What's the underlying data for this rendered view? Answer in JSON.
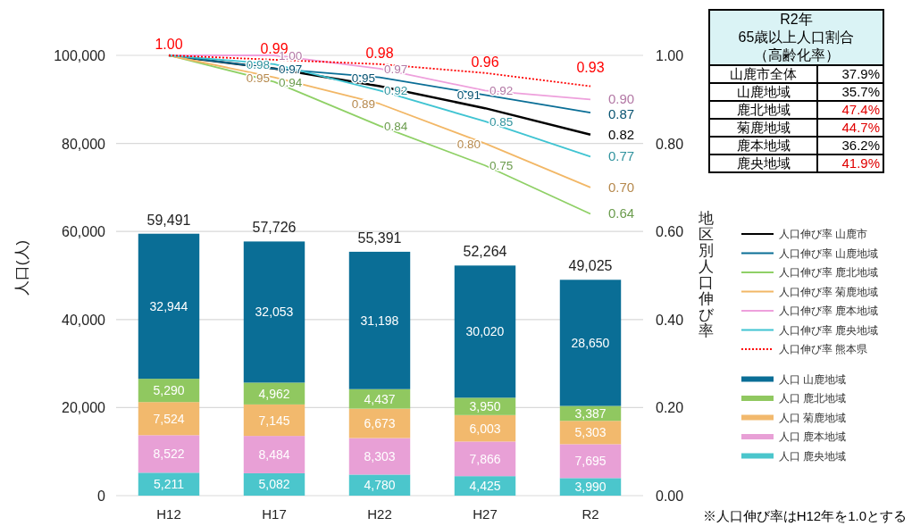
{
  "chart_data": [
    {
      "type": "bar",
      "stacked": true,
      "categories": [
        "H12",
        "H17",
        "H22",
        "H27",
        "R2"
      ],
      "ylabel": "人口(人)",
      "y2label": "地区別人口伸び率",
      "ylim": [
        0,
        100000
      ],
      "yticks": [
        {
          "value": 0,
          "label": "0"
        },
        {
          "value": 20000,
          "label": "20,000"
        },
        {
          "value": 40000,
          "label": "40,000"
        },
        {
          "value": 60000,
          "label": "60,000"
        },
        {
          "value": 80000,
          "label": "80,000"
        },
        {
          "value": 100000,
          "label": "100,000"
        }
      ],
      "y2lim": [
        0,
        1
      ],
      "y2ticks": [
        {
          "value": 0,
          "label": "0.00"
        },
        {
          "value": 0.2,
          "label": "0.20"
        },
        {
          "value": 0.4,
          "label": "0.40"
        },
        {
          "value": 0.6,
          "label": "0.60"
        },
        {
          "value": 0.8,
          "label": "0.80"
        },
        {
          "value": 1,
          "label": "1.00"
        }
      ],
      "grid": "y",
      "legend": "right",
      "totals": [
        "59,491",
        "57,726",
        "55,391",
        "52,264",
        "49,025"
      ],
      "series": [
        {
          "name": "人口伸び率 山鹿市",
          "type": "line",
          "axis": "y2",
          "color": "#000000",
          "values": [
            1.0,
            0.97,
            0.93,
            0.88,
            0.82
          ],
          "value_labels": [
            null,
            null,
            null,
            null,
            "0.82"
          ]
        },
        {
          "name": "人口伸び率 山鹿地域",
          "type": "line",
          "axis": "y2",
          "color": "#0a6e96",
          "values": [
            1.0,
            0.97,
            0.95,
            0.91,
            0.87
          ],
          "value_labels": [
            null,
            "0.97",
            "0.95",
            "0.91",
            "0.87"
          ]
        },
        {
          "name": "人口伸び率 鹿北地域",
          "type": "line",
          "axis": "y2",
          "color": "#8fd066",
          "values": [
            1.0,
            0.94,
            0.84,
            0.75,
            0.64
          ],
          "value_labels": [
            null,
            "0.94",
            "0.84",
            "0.75",
            "0.64"
          ]
        },
        {
          "name": "人口伸び率 菊鹿地域",
          "type": "line",
          "axis": "y2",
          "color": "#f2b766",
          "values": [
            1.0,
            0.95,
            0.89,
            0.8,
            0.7
          ],
          "value_labels": [
            null,
            "0.95",
            "0.89",
            "0.80",
            "0.70"
          ]
        },
        {
          "name": "人口伸び率 鹿本地域",
          "type": "line",
          "axis": "y2",
          "color": "#eea0dc",
          "values": [
            1.0,
            1.0,
            0.97,
            0.92,
            0.9
          ],
          "value_labels": [
            null,
            "1.00",
            "0.97",
            "0.92",
            "0.90"
          ]
        },
        {
          "name": "人口伸び率 鹿央地域",
          "type": "line",
          "axis": "y2",
          "color": "#40c4d2",
          "values": [
            1.0,
            0.98,
            0.92,
            0.85,
            0.77
          ],
          "value_labels": [
            null,
            "0.98",
            "0.92",
            "0.85",
            "0.77"
          ]
        },
        {
          "name": "人口伸び率 熊本県",
          "type": "line",
          "axis": "y2",
          "color": "#ff0000",
          "line_style": "dotted",
          "values": [
            1.0,
            0.99,
            0.98,
            0.96,
            0.93
          ],
          "value_labels": [
            "1.00",
            "0.99",
            "0.98",
            "0.96",
            "0.93"
          ]
        },
        {
          "name": "人口 鹿央地域",
          "color": "#4bc6cc",
          "values": [
            5211,
            5082,
            4780,
            4425,
            3990
          ],
          "value_labels": [
            "5,211",
            "5,082",
            "4,780",
            "4,425",
            "3,990"
          ]
        },
        {
          "name": "人口 鹿本地域",
          "color": "#e8a0d6",
          "values": [
            8522,
            8484,
            8303,
            7866,
            7695
          ],
          "value_labels": [
            "8,522",
            "8,484",
            "8,303",
            "7,866",
            "7,695"
          ]
        },
        {
          "name": "人口 菊鹿地域",
          "color": "#f2b96d",
          "values": [
            7524,
            7145,
            6673,
            6003,
            5303
          ],
          "value_labels": [
            "7,524",
            "7,145",
            "6,673",
            "6,003",
            "5,303"
          ]
        },
        {
          "name": "人口 鹿北地域",
          "color": "#90c860",
          "values": [
            5290,
            4962,
            4437,
            3950,
            3387
          ],
          "value_labels": [
            "5,290",
            "4,962",
            "4,437",
            "3,950",
            "3,387"
          ]
        },
        {
          "name": "人口 山鹿地域",
          "color": "#0a6e96",
          "values": [
            32944,
            32053,
            31198,
            30020,
            28650
          ],
          "value_labels": [
            "32,944",
            "32,053",
            "31,198",
            "30,020",
            "28,650"
          ]
        }
      ],
      "annotations": [
        "※人口伸び率はH12年を1.0とする"
      ]
    },
    {
      "type": "other",
      "title": "R2年",
      "subtitle": "65歳以上人口割合（高齢化率）",
      "categories": [
        "山鹿市全体",
        "山鹿地域",
        "鹿北地域",
        "菊鹿地域",
        "鹿本地域",
        "鹿央地域"
      ],
      "value_labels": [
        "37.9%",
        "35.7%",
        "47.4%",
        "44.7%",
        "36.2%",
        "41.9%"
      ],
      "colors": [
        "#000000",
        "#000000",
        "#e00000",
        "#e00000",
        "#000000",
        "#e00000"
      ]
    }
  ]
}
